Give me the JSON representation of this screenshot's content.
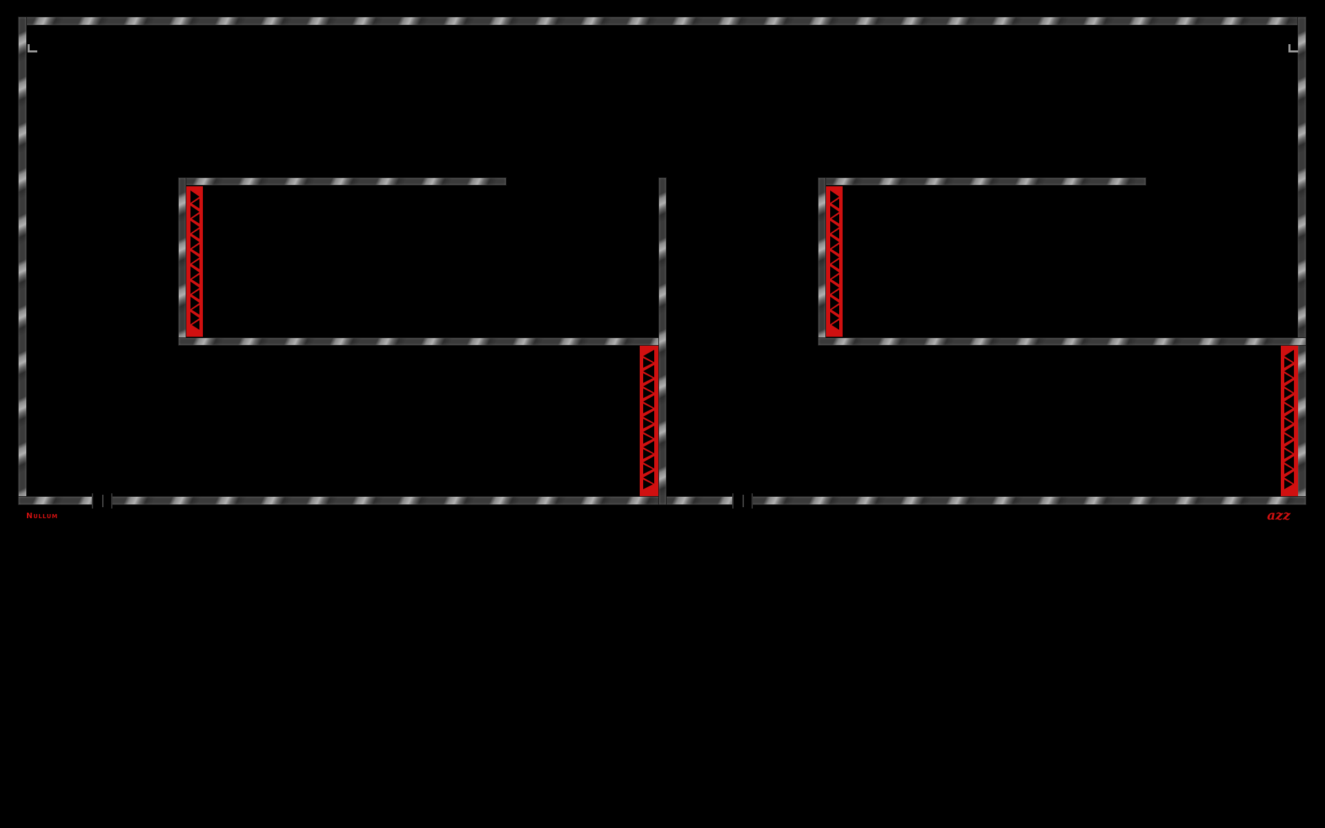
{
  "level": {
    "left_label": "Nullum",
    "right_label": "azz"
  },
  "colors": {
    "background": "#000000",
    "hazard": "#d01010",
    "wall": "#8a8a8a"
  },
  "icons": {
    "wall": "striped-wall",
    "hazard": "red-zigzag-spikes",
    "gate": "gate-icon",
    "corner_marker": "corner-marker-icon"
  }
}
